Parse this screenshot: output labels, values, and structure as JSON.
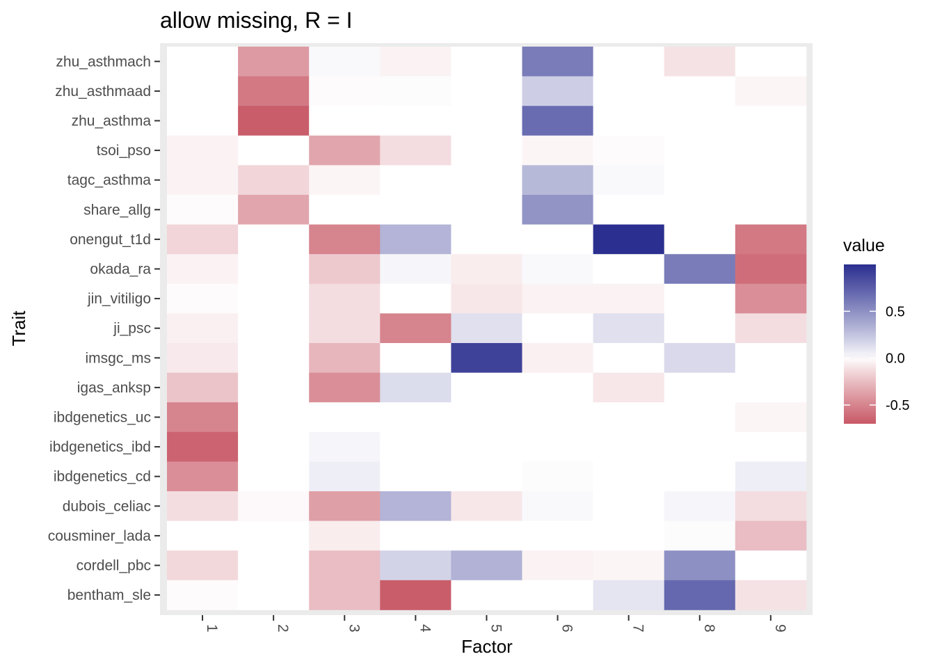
{
  "chart_data": {
    "type": "heatmap",
    "title": "allow missing, R = I",
    "xlabel": "Factor",
    "ylabel": "Trait",
    "x_categories": [
      "1",
      "2",
      "3",
      "4",
      "5",
      "6",
      "7",
      "8",
      "9"
    ],
    "y_categories": [
      "zhu_asthmach",
      "zhu_asthmaad",
      "zhu_asthma",
      "tsoi_pso",
      "tagc_asthma",
      "share_allg",
      "onengut_t1d",
      "okada_ra",
      "jin_vitiligo",
      "ji_psc",
      "imsgc_ms",
      "igas_anksp",
      "ibdgenetics_uc",
      "ibdgenetics_ibd",
      "ibdgenetics_cd",
      "dubois_celiac",
      "cousminer_lada",
      "cordell_pbc",
      "bentham_sle"
    ],
    "values": [
      [
        0.0,
        -0.4,
        0.02,
        -0.04,
        0.0,
        0.6,
        0.0,
        -0.1,
        0.0
      ],
      [
        0.0,
        -0.55,
        -0.01,
        0.01,
        0.0,
        0.2,
        0.0,
        0.0,
        -0.03
      ],
      [
        0.0,
        -0.68,
        0.0,
        0.0,
        0.0,
        0.68,
        0.0,
        0.0,
        0.0
      ],
      [
        -0.04,
        0.0,
        -0.35,
        -0.12,
        0.0,
        -0.03,
        -0.01,
        0.0,
        0.0
      ],
      [
        -0.04,
        -0.15,
        -0.03,
        0.0,
        0.0,
        0.3,
        0.02,
        0.0,
        0.0
      ],
      [
        -0.01,
        -0.35,
        0.0,
        0.0,
        0.0,
        0.48,
        0.0,
        0.0,
        0.0
      ],
      [
        -0.15,
        0.0,
        -0.5,
        0.32,
        0.0,
        0.0,
        1.0,
        0.0,
        -0.55
      ],
      [
        -0.04,
        0.0,
        -0.2,
        0.03,
        -0.06,
        0.02,
        0.0,
        0.6,
        -0.6
      ],
      [
        -0.01,
        0.0,
        -0.12,
        0.0,
        -0.08,
        -0.04,
        -0.04,
        0.0,
        -0.45
      ],
      [
        -0.05,
        0.0,
        -0.12,
        -0.5,
        0.12,
        0.0,
        0.12,
        0.0,
        -0.12
      ],
      [
        -0.07,
        0.0,
        -0.28,
        0.0,
        0.9,
        -0.05,
        0.0,
        0.15,
        0.0
      ],
      [
        -0.22,
        0.0,
        -0.45,
        0.14,
        0.0,
        0.0,
        -0.08,
        0.0,
        0.0
      ],
      [
        -0.5,
        0.0,
        0.0,
        0.0,
        0.0,
        0.0,
        0.0,
        0.0,
        -0.03
      ],
      [
        -0.65,
        0.0,
        0.03,
        0.0,
        0.0,
        0.0,
        0.0,
        0.0,
        0.0
      ],
      [
        -0.45,
        0.0,
        0.06,
        0.0,
        0.0,
        0.01,
        0.0,
        0.0,
        0.06
      ],
      [
        -0.12,
        -0.02,
        -0.38,
        0.32,
        -0.08,
        0.02,
        0.0,
        0.03,
        -0.12
      ],
      [
        0.0,
        0.0,
        -0.06,
        0.0,
        0.0,
        0.0,
        0.0,
        0.01,
        -0.25
      ],
      [
        -0.14,
        0.0,
        -0.25,
        0.18,
        0.33,
        -0.04,
        -0.03,
        0.5,
        0.0
      ],
      [
        -0.01,
        0.0,
        -0.25,
        -0.68,
        0.0,
        0.0,
        0.1,
        0.7,
        -0.1
      ]
    ],
    "color_scale": {
      "low_color": "#b2182b",
      "mid_color": "#ffffff",
      "high_color": "#2b2f8f",
      "domain": [
        -0.7,
        0.0,
        1.0
      ]
    },
    "legend": {
      "title": "value",
      "ticks": [
        0.5,
        0.0,
        -0.5
      ],
      "tick_labels": [
        "0.5",
        "0.0",
        "-0.5"
      ],
      "position": "right"
    },
    "panel_background": "#ebebeb",
    "grid": true
  }
}
